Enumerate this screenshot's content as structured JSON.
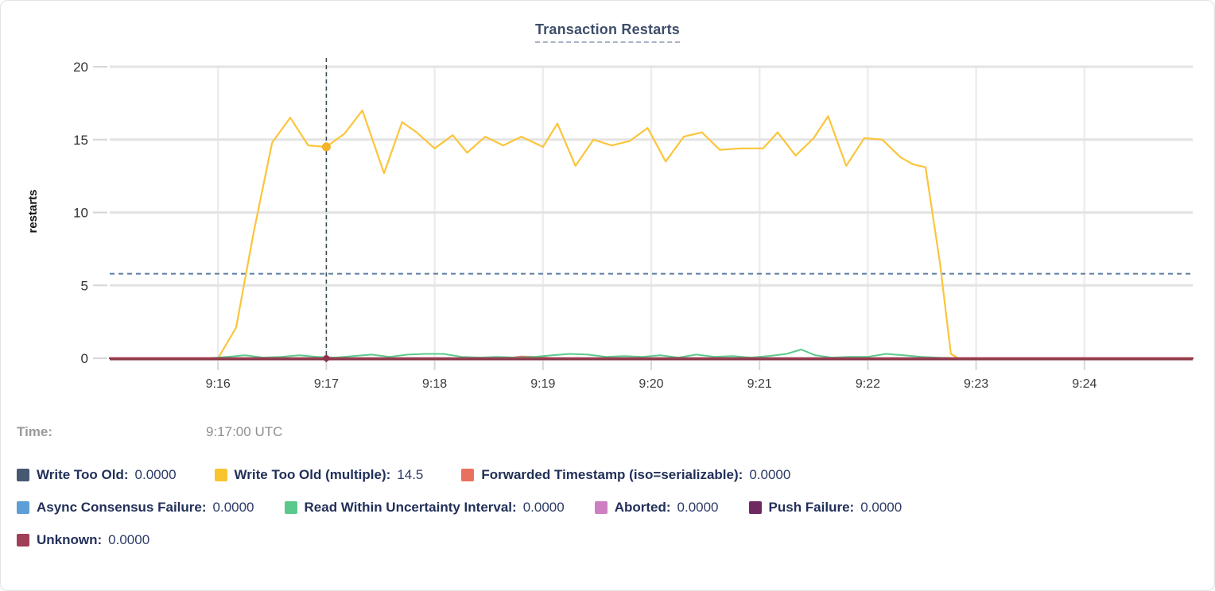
{
  "title": "Transaction Restarts",
  "tooltip": {
    "time_label": "Time:",
    "time_value": "9:17:00 UTC"
  },
  "legend": {
    "items": [
      {
        "label": "Write Too Old:",
        "value": "0.0000",
        "color": "#475872"
      },
      {
        "label": "Write Too Old (multiple):",
        "value": "14.5",
        "color": "#F8C42F"
      },
      {
        "label": "Forwarded Timestamp (iso=serializable):",
        "value": "0.0000",
        "color": "#E8705F"
      },
      {
        "label": "Async Consensus Failure:",
        "value": "0.0000",
        "color": "#5C9FD6"
      },
      {
        "label": "Read Within Uncertainty Interval:",
        "value": "0.0000",
        "color": "#5BC98B"
      },
      {
        "label": "Aborted:",
        "value": "0.0000",
        "color": "#CE7FC1"
      },
      {
        "label": "Push Failure:",
        "value": "0.0000",
        "color": "#6E2A60"
      },
      {
        "label": "Unknown:",
        "value": "0.0000",
        "color": "#A04058"
      }
    ]
  },
  "chart_data": {
    "type": "line",
    "title": "Transaction Restarts",
    "xlabel": "",
    "ylabel": "restarts",
    "ylim": [
      0,
      20
    ],
    "y_ticks": [
      0,
      5,
      10,
      15,
      20
    ],
    "x_domain_seconds_after_9am": [
      900,
      1500
    ],
    "x_ticks": [
      {
        "t": 960,
        "label": "9:16"
      },
      {
        "t": 1020,
        "label": "9:17"
      },
      {
        "t": 1080,
        "label": "9:18"
      },
      {
        "t": 1140,
        "label": "9:19"
      },
      {
        "t": 1200,
        "label": "9:20"
      },
      {
        "t": 1260,
        "label": "9:21"
      },
      {
        "t": 1320,
        "label": "9:22"
      },
      {
        "t": 1380,
        "label": "9:23"
      },
      {
        "t": 1440,
        "label": "9:24"
      }
    ],
    "grid": true,
    "average_line_value": 5.8,
    "hover": {
      "t": 1020,
      "time": "9:17:00 UTC",
      "points": [
        {
          "series": "Write Too Old (multiple)",
          "t": 1020,
          "value": 14.5,
          "color": "#F3B32B",
          "r": 5.5
        },
        {
          "series": "Unknown",
          "t": 1020,
          "value": 0,
          "color": "#8E3048",
          "r": 4
        }
      ]
    },
    "series": [
      {
        "name": "Write Too Old",
        "color": "#475872",
        "width": 2,
        "points": [
          [
            900,
            0
          ],
          [
            1500,
            0
          ]
        ]
      },
      {
        "name": "Write Too Old (multiple)",
        "color": "#FBC53B",
        "width": 2.2,
        "points": [
          [
            900,
            0
          ],
          [
            955,
            0
          ],
          [
            960,
            0
          ],
          [
            970,
            2.1
          ],
          [
            980,
            8.8
          ],
          [
            990,
            14.8
          ],
          [
            1000,
            16.5
          ],
          [
            1010,
            14.6
          ],
          [
            1020,
            14.5
          ],
          [
            1030,
            15.4
          ],
          [
            1040,
            17.0
          ],
          [
            1052,
            12.7
          ],
          [
            1062,
            16.2
          ],
          [
            1070,
            15.5
          ],
          [
            1080,
            14.4
          ],
          [
            1090,
            15.3
          ],
          [
            1098,
            14.1
          ],
          [
            1108,
            15.2
          ],
          [
            1118,
            14.6
          ],
          [
            1128,
            15.2
          ],
          [
            1140,
            14.5
          ],
          [
            1148,
            16.1
          ],
          [
            1158,
            13.2
          ],
          [
            1168,
            15.0
          ],
          [
            1178,
            14.6
          ],
          [
            1188,
            14.9
          ],
          [
            1198,
            15.8
          ],
          [
            1208,
            13.5
          ],
          [
            1218,
            15.2
          ],
          [
            1228,
            15.5
          ],
          [
            1238,
            14.3
          ],
          [
            1250,
            14.4
          ],
          [
            1262,
            14.4
          ],
          [
            1270,
            15.5
          ],
          [
            1280,
            13.9
          ],
          [
            1290,
            15.1
          ],
          [
            1298,
            16.6
          ],
          [
            1308,
            13.2
          ],
          [
            1318,
            15.1
          ],
          [
            1328,
            15.0
          ],
          [
            1338,
            13.8
          ],
          [
            1345,
            13.3
          ],
          [
            1352,
            13.1
          ],
          [
            1360,
            6.5
          ],
          [
            1366,
            0.3
          ],
          [
            1370,
            0
          ],
          [
            1500,
            0
          ]
        ]
      },
      {
        "name": "Forwarded Timestamp (iso=serializable)",
        "color": "#E8705F",
        "width": 2,
        "points": [
          [
            900,
            0
          ],
          [
            1120,
            0
          ],
          [
            1128,
            0.12
          ],
          [
            1136,
            0.1
          ],
          [
            1145,
            0
          ],
          [
            1500,
            0
          ]
        ]
      },
      {
        "name": "Async Consensus Failure",
        "color": "#5C9FD6",
        "width": 2,
        "points": [
          [
            900,
            0
          ],
          [
            1500,
            0
          ]
        ]
      },
      {
        "name": "Read Within Uncertainty Interval",
        "color": "#5BC98B",
        "width": 2,
        "points": [
          [
            900,
            0
          ],
          [
            955,
            0
          ],
          [
            965,
            0.1
          ],
          [
            975,
            0.2
          ],
          [
            985,
            0.05
          ],
          [
            995,
            0.1
          ],
          [
            1005,
            0.2
          ],
          [
            1015,
            0.1
          ],
          [
            1025,
            0.05
          ],
          [
            1035,
            0.15
          ],
          [
            1045,
            0.25
          ],
          [
            1055,
            0.1
          ],
          [
            1065,
            0.25
          ],
          [
            1075,
            0.3
          ],
          [
            1085,
            0.3
          ],
          [
            1095,
            0.1
          ],
          [
            1105,
            0.05
          ],
          [
            1115,
            0.1
          ],
          [
            1125,
            0.05
          ],
          [
            1135,
            0.1
          ],
          [
            1145,
            0.2
          ],
          [
            1155,
            0.3
          ],
          [
            1165,
            0.25
          ],
          [
            1175,
            0.1
          ],
          [
            1185,
            0.15
          ],
          [
            1195,
            0.1
          ],
          [
            1205,
            0.2
          ],
          [
            1215,
            0.05
          ],
          [
            1225,
            0.25
          ],
          [
            1235,
            0.1
          ],
          [
            1245,
            0.15
          ],
          [
            1255,
            0.05
          ],
          [
            1265,
            0.15
          ],
          [
            1275,
            0.3
          ],
          [
            1283,
            0.6
          ],
          [
            1291,
            0.2
          ],
          [
            1300,
            0.05
          ],
          [
            1310,
            0.1
          ],
          [
            1320,
            0.1
          ],
          [
            1330,
            0.3
          ],
          [
            1340,
            0.2
          ],
          [
            1350,
            0.1
          ],
          [
            1360,
            0.03
          ],
          [
            1370,
            0
          ],
          [
            1500,
            0
          ]
        ]
      },
      {
        "name": "Aborted",
        "color": "#CE7FC1",
        "width": 2,
        "points": [
          [
            900,
            0
          ],
          [
            1500,
            0
          ]
        ]
      },
      {
        "name": "Push Failure",
        "color": "#6E2A60",
        "width": 2,
        "points": [
          [
            900,
            0
          ],
          [
            1500,
            0
          ]
        ]
      },
      {
        "name": "Unknown",
        "color": "#9B3A50",
        "width": 2.4,
        "points": [
          [
            900,
            0
          ],
          [
            1500,
            0
          ]
        ]
      }
    ]
  }
}
